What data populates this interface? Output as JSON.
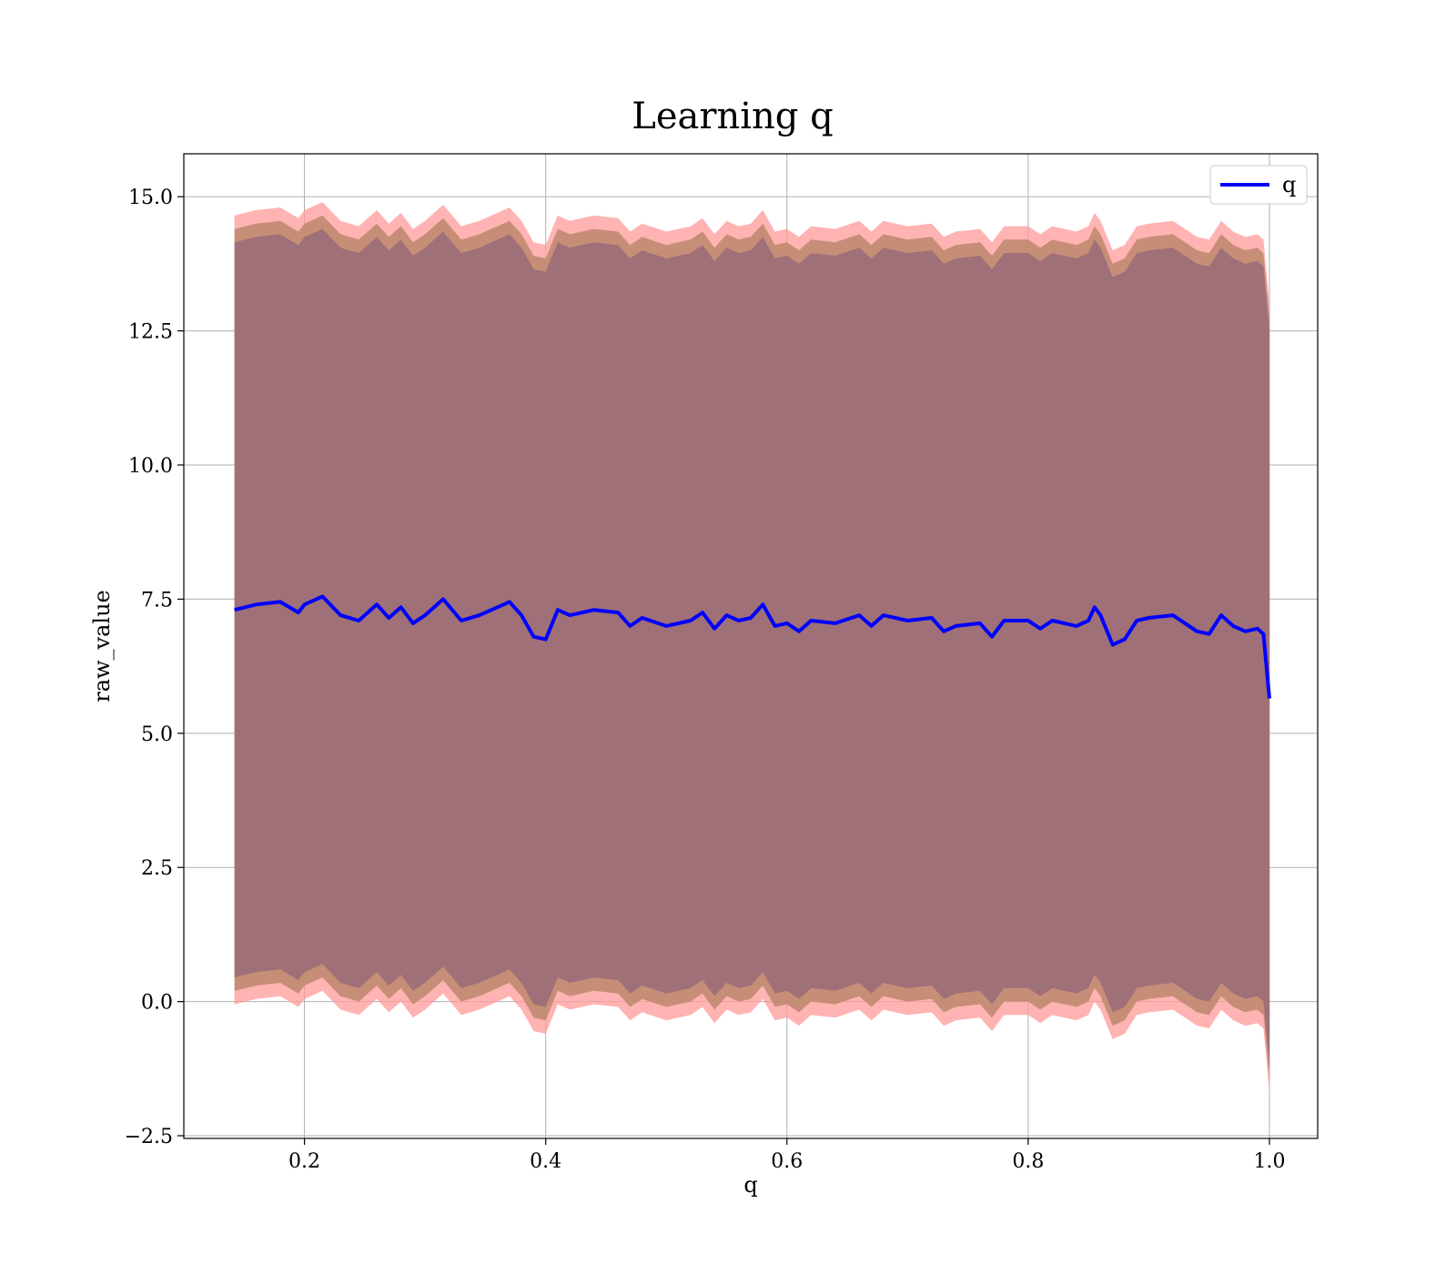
{
  "chart_data": {
    "type": "line",
    "title": "Learning q",
    "xlabel": "q",
    "ylabel": "raw_value",
    "xlim": [
      0.1,
      1.04
    ],
    "ylim": [
      -2.55,
      15.8
    ],
    "xticks": [
      0.2,
      0.4,
      0.6,
      0.8,
      1.0
    ],
    "xtick_labels": [
      "0.2",
      "0.4",
      "0.6",
      "0.8",
      "1.0"
    ],
    "yticks": [
      -2.5,
      0.0,
      2.5,
      5.0,
      7.5,
      10.0,
      12.5,
      15.0
    ],
    "ytick_labels": [
      "−2.5",
      "0.0",
      "2.5",
      "5.0",
      "7.5",
      "10.0",
      "12.5",
      "15.0"
    ],
    "grid": true,
    "legend": {
      "position": "top-right",
      "entries": [
        "q"
      ]
    },
    "colors": {
      "line": "#0000ff",
      "band_outer": "#ff9999",
      "band_inner": "#a07078",
      "band_mid": "#c08a70",
      "grid": "#b0b0b0"
    },
    "series": [
      {
        "name": "q",
        "x": [
          0.142,
          0.16,
          0.18,
          0.195,
          0.2,
          0.215,
          0.23,
          0.245,
          0.26,
          0.27,
          0.28,
          0.29,
          0.3,
          0.315,
          0.33,
          0.345,
          0.36,
          0.37,
          0.38,
          0.39,
          0.4,
          0.41,
          0.42,
          0.44,
          0.46,
          0.47,
          0.48,
          0.5,
          0.52,
          0.53,
          0.54,
          0.55,
          0.56,
          0.57,
          0.58,
          0.59,
          0.6,
          0.61,
          0.62,
          0.64,
          0.66,
          0.67,
          0.68,
          0.7,
          0.72,
          0.73,
          0.74,
          0.76,
          0.77,
          0.78,
          0.8,
          0.81,
          0.82,
          0.84,
          0.85,
          0.855,
          0.86,
          0.87,
          0.88,
          0.89,
          0.9,
          0.92,
          0.93,
          0.94,
          0.95,
          0.96,
          0.97,
          0.98,
          0.99,
          0.995,
          1.0
        ],
        "y": [
          7.3,
          7.4,
          7.45,
          7.25,
          7.4,
          7.55,
          7.2,
          7.1,
          7.4,
          7.15,
          7.35,
          7.05,
          7.2,
          7.5,
          7.1,
          7.2,
          7.35,
          7.45,
          7.2,
          6.8,
          6.75,
          7.3,
          7.2,
          7.3,
          7.25,
          7.0,
          7.15,
          7.0,
          7.1,
          7.25,
          6.95,
          7.2,
          7.1,
          7.15,
          7.4,
          7.0,
          7.05,
          6.9,
          7.1,
          7.05,
          7.2,
          7.0,
          7.2,
          7.1,
          7.15,
          6.9,
          7.0,
          7.05,
          6.8,
          7.1,
          7.1,
          6.95,
          7.1,
          7.0,
          7.1,
          7.35,
          7.2,
          6.65,
          6.75,
          7.1,
          7.15,
          7.2,
          7.05,
          6.9,
          6.85,
          7.2,
          7.0,
          6.9,
          6.95,
          6.85,
          5.65
        ]
      }
    ],
    "bands": [
      {
        "name": "outer",
        "upper_offset": 7.35,
        "lower_offset": -7.35
      },
      {
        "name": "mid",
        "upper_offset": 7.1,
        "lower_offset": -7.1
      },
      {
        "name": "inner",
        "upper_offset": 6.85,
        "lower_offset": -6.85
      }
    ]
  }
}
